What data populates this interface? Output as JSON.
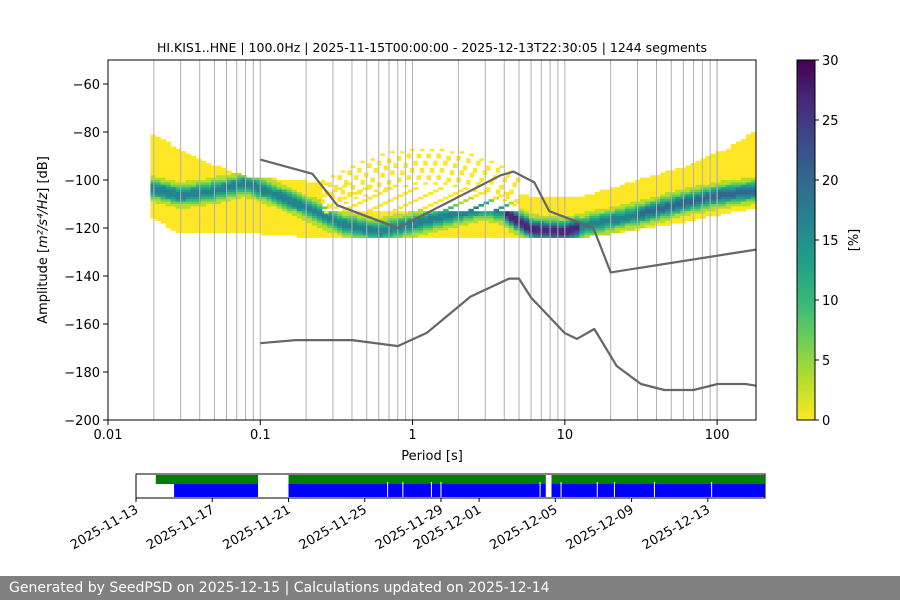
{
  "chart_data": {
    "type": "heatmap",
    "title": "HI.KIS1..HNE | 100.0Hz | 2025-11-15T00:00:00 - 2025-12-13T22:30:05 | 1244 segments",
    "xlabel": "Period [s]",
    "ylabel_prefix": "Amplitude [",
    "ylabel_math": "m²/s⁴/Hz",
    "ylabel_suffix": "] [dB]",
    "x_scale": "log",
    "xlim": [
      0.01,
      180
    ],
    "ylim": [
      -200,
      -50
    ],
    "xticks": [
      {
        "v": 0.01,
        "label": "0.01"
      },
      {
        "v": 0.1,
        "label": "0.1"
      },
      {
        "v": 1,
        "label": "1"
      },
      {
        "v": 10,
        "label": "10"
      },
      {
        "v": 100,
        "label": "100"
      }
    ],
    "yticks": [
      {
        "v": -60,
        "label": "−60"
      },
      {
        "v": -80,
        "label": "−80"
      },
      {
        "v": -100,
        "label": "−100"
      },
      {
        "v": -120,
        "label": "−120"
      },
      {
        "v": -140,
        "label": "−140"
      },
      {
        "v": -160,
        "label": "−160"
      },
      {
        "v": -180,
        "label": "−180"
      },
      {
        "v": -200,
        "label": "−200"
      }
    ],
    "grid_periods": [
      0.02,
      0.03,
      0.04,
      0.05,
      0.06,
      0.07,
      0.08,
      0.09,
      0.2,
      0.3,
      0.4,
      0.5,
      0.6,
      0.7,
      0.8,
      0.9,
      2,
      3,
      4,
      5,
      6,
      7,
      8,
      9,
      20,
      30,
      40,
      50,
      60,
      70,
      80,
      90
    ],
    "colorbar": {
      "label": "[%]",
      "range": [
        0,
        30
      ],
      "ticks": [
        {
          "v": 0,
          "label": "0"
        },
        {
          "v": 5,
          "label": "5"
        },
        {
          "v": 10,
          "label": "10"
        },
        {
          "v": 15,
          "label": "15"
        },
        {
          "v": 20,
          "label": "20"
        },
        {
          "v": 25,
          "label": "25"
        },
        {
          "v": 30,
          "label": "30"
        }
      ],
      "colors": [
        "#fde725",
        "#b5de2b",
        "#6ece58",
        "#35b779",
        "#1f9e89",
        "#26828e",
        "#31688e",
        "#3e4989",
        "#482878",
        "#440154"
      ]
    },
    "mode_curve": [
      [
        0.019,
        -103
      ],
      [
        0.03,
        -106
      ],
      [
        0.05,
        -104
      ],
      [
        0.08,
        -101
      ],
      [
        0.12,
        -105
      ],
      [
        0.2,
        -111
      ],
      [
        0.35,
        -118
      ],
      [
        0.6,
        -121
      ],
      [
        1.0,
        -118
      ],
      [
        1.8,
        -114
      ],
      [
        3.0,
        -111
      ],
      [
        4.0,
        -113
      ],
      [
        6.0,
        -120
      ],
      [
        10,
        -121
      ],
      [
        15,
        -118
      ],
      [
        30,
        -114
      ],
      [
        60,
        -109
      ],
      [
        100,
        -106
      ],
      [
        180,
        -104
      ]
    ],
    "upper_envelope": [
      [
        0.019,
        -80
      ],
      [
        0.04,
        -91
      ],
      [
        0.08,
        -98
      ],
      [
        0.2,
        -100
      ],
      [
        0.5,
        -101
      ],
      [
        1,
        -102
      ],
      [
        3,
        -103
      ],
      [
        7,
        -107
      ],
      [
        12,
        -107
      ],
      [
        25,
        -101
      ],
      [
        60,
        -94
      ],
      [
        120,
        -86
      ],
      [
        180,
        -79
      ]
    ],
    "lower_envelope": [
      [
        0.019,
        -115
      ],
      [
        0.03,
        -122
      ],
      [
        0.1,
        -122
      ],
      [
        0.3,
        -124
      ],
      [
        1,
        -124
      ],
      [
        4,
        -124
      ],
      [
        10,
        -124
      ],
      [
        20,
        -122
      ],
      [
        60,
        -117
      ],
      [
        180,
        -111
      ]
    ],
    "scatter_zone": {
      "x": [
        0.25,
        5
      ],
      "y": [
        -113,
        -85
      ]
    },
    "nhnm": [
      [
        0.1,
        -91.5
      ],
      [
        0.22,
        -97.4
      ],
      [
        0.32,
        -110.5
      ],
      [
        0.8,
        -120
      ],
      [
        3.8,
        -98
      ],
      [
        4.6,
        -96.5
      ],
      [
        6.3,
        -101
      ],
      [
        7.9,
        -113
      ],
      [
        15.4,
        -120
      ],
      [
        20,
        -138.5
      ],
      [
        180,
        -129
      ]
    ],
    "nlnm": [
      [
        0.1,
        -168
      ],
      [
        0.17,
        -166.7
      ],
      [
        0.4,
        -166.7
      ],
      [
        0.8,
        -169.2
      ],
      [
        1.24,
        -163.7
      ],
      [
        2.4,
        -148.6
      ],
      [
        4.3,
        -141.1
      ],
      [
        5.0,
        -141.1
      ],
      [
        6.0,
        -149
      ],
      [
        10,
        -163.8
      ],
      [
        12,
        -166.2
      ],
      [
        15.6,
        -162.1
      ],
      [
        21.9,
        -177.5
      ],
      [
        31.6,
        -185
      ],
      [
        45,
        -187.5
      ],
      [
        70,
        -187.5
      ],
      [
        101,
        -185
      ],
      [
        154,
        -185
      ],
      [
        180,
        -185.7
      ]
    ],
    "timeline": {
      "date_ticks": [
        "2025-11-13",
        "2025-11-17",
        "2025-11-21",
        "2025-11-25",
        "2025-11-29",
        "2025-12-01",
        "2025-12-05",
        "2025-12-09",
        "2025-12-13"
      ],
      "date_tick_days": [
        -2,
        2,
        6,
        10,
        14,
        16,
        20,
        24,
        28
      ],
      "xlim_days": [
        -2,
        31
      ],
      "range_color": "#008000",
      "segment_color": "#0000ff",
      "ranges": [
        [
          -0.96,
          4.4
        ],
        [
          6.0,
          19.5
        ],
        [
          19.8,
          31.0
        ]
      ],
      "segments": [
        [
          0.0,
          4.4
        ],
        [
          6.0,
          19.5
        ],
        [
          19.8,
          31.0
        ]
      ],
      "gaps": [
        11.2,
        12.0,
        13.5,
        14.0,
        19.2,
        20.3,
        22.2,
        23.1,
        25.2,
        28.2
      ]
    }
  },
  "footer": "Generated by SeedPSD on 2025-12-15 | Calculations updated on 2025-12-14"
}
